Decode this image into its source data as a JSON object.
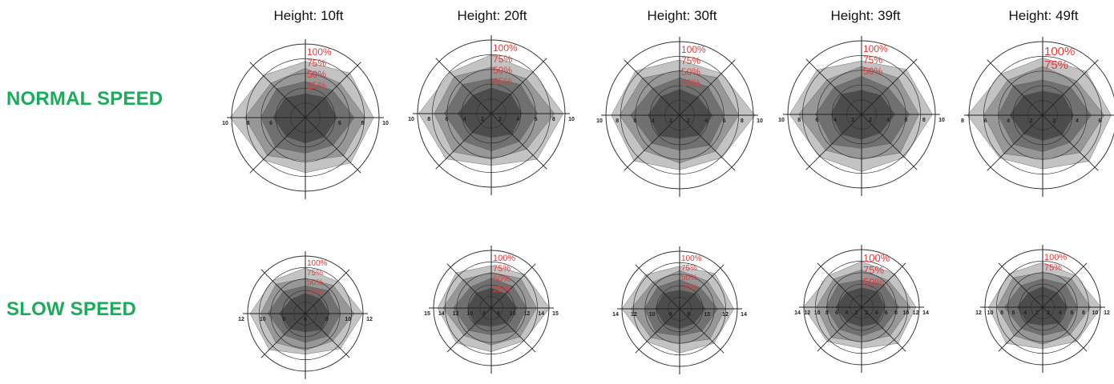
{
  "colors": {
    "row_label": "#1aac5a",
    "percent_label": "#e23b3b",
    "polygon": "#6f6f6f"
  },
  "columns": [
    {
      "label": "Height: 10ft"
    },
    {
      "label": "Height: 20ft"
    },
    {
      "label": "Height: 30ft"
    },
    {
      "label": "Height: 39ft"
    },
    {
      "label": "Height: 49ft"
    }
  ],
  "rows": [
    {
      "label": "NORMAL SPEED"
    },
    {
      "label": "SLOW SPEED"
    }
  ],
  "chart_data": [
    {
      "type": "polar-area",
      "row": "NORMAL SPEED",
      "column": "Height: 10ft",
      "axis_ticks": [
        "10",
        "8",
        "6",
        "",
        "",
        "6",
        "8",
        "10"
      ],
      "percent_labels": [
        "100%",
        "75%",
        "50%",
        "25%"
      ]
    },
    {
      "type": "polar-area",
      "row": "NORMAL SPEED",
      "column": "Height: 20ft",
      "axis_ticks": [
        "10",
        "8",
        "6",
        "4",
        "2",
        "2",
        "4",
        "6",
        "8",
        "10"
      ],
      "percent_labels": [
        "100%",
        "75%",
        "50%",
        "25%"
      ]
    },
    {
      "type": "polar-area",
      "row": "NORMAL SPEED",
      "column": "Height: 30ft",
      "axis_ticks": [
        "10",
        "8",
        "6",
        "4",
        "2",
        "2",
        "4",
        "6",
        "8",
        "10"
      ],
      "percent_labels": [
        "100%",
        "75%",
        "50%",
        "25%"
      ]
    },
    {
      "type": "polar-area",
      "row": "NORMAL SPEED",
      "column": "Height: 39ft",
      "axis_ticks": [
        "10",
        "8",
        "6",
        "4",
        "2",
        "2",
        "4",
        "6",
        "8",
        "10"
      ],
      "percent_labels": [
        "100%",
        "75%",
        "50%"
      ]
    },
    {
      "type": "polar-area",
      "row": "NORMAL SPEED",
      "column": "Height: 49ft",
      "axis_ticks": [
        "8",
        "6",
        "4",
        "2",
        "2",
        "4",
        "6",
        "8"
      ],
      "percent_labels": [
        "100%",
        "75%"
      ]
    },
    {
      "type": "polar-area",
      "row": "SLOW SPEED",
      "column": "Height: 10ft",
      "axis_ticks": [
        "12",
        "10",
        "8",
        "6",
        "8",
        "10",
        "12"
      ],
      "percent_labels": [
        "100%",
        "75%",
        "50%",
        "25%"
      ]
    },
    {
      "type": "polar-area",
      "row": "SLOW SPEED",
      "column": "Height: 20ft",
      "axis_ticks": [
        "15",
        "14",
        "12",
        "10",
        "8",
        "8",
        "10",
        "12",
        "14",
        "15"
      ],
      "percent_labels": [
        "100%",
        "75%",
        "50%",
        "25%"
      ]
    },
    {
      "type": "polar-area",
      "row": "SLOW SPEED",
      "column": "Height: 30ft",
      "axis_ticks": [
        "14",
        "12",
        "10",
        "8",
        "8",
        "10",
        "12",
        "14"
      ],
      "percent_labels": [
        "100%",
        "75%",
        "50%",
        "25%"
      ]
    },
    {
      "type": "polar-area",
      "row": "SLOW SPEED",
      "column": "Height: 39ft",
      "axis_ticks": [
        "14",
        "12",
        "10",
        "8",
        "6",
        "4",
        "2",
        "2",
        "4",
        "6",
        "8",
        "10",
        "12",
        "14"
      ],
      "percent_labels": [
        "100%",
        "75%",
        "50%"
      ]
    },
    {
      "type": "polar-area",
      "row": "SLOW SPEED",
      "column": "Height: 49ft",
      "axis_ticks": [
        "12",
        "10",
        "8",
        "6",
        "4",
        "2",
        "2",
        "4",
        "6",
        "8",
        "10",
        "12"
      ],
      "percent_labels": [
        "100%",
        "75%"
      ]
    }
  ]
}
